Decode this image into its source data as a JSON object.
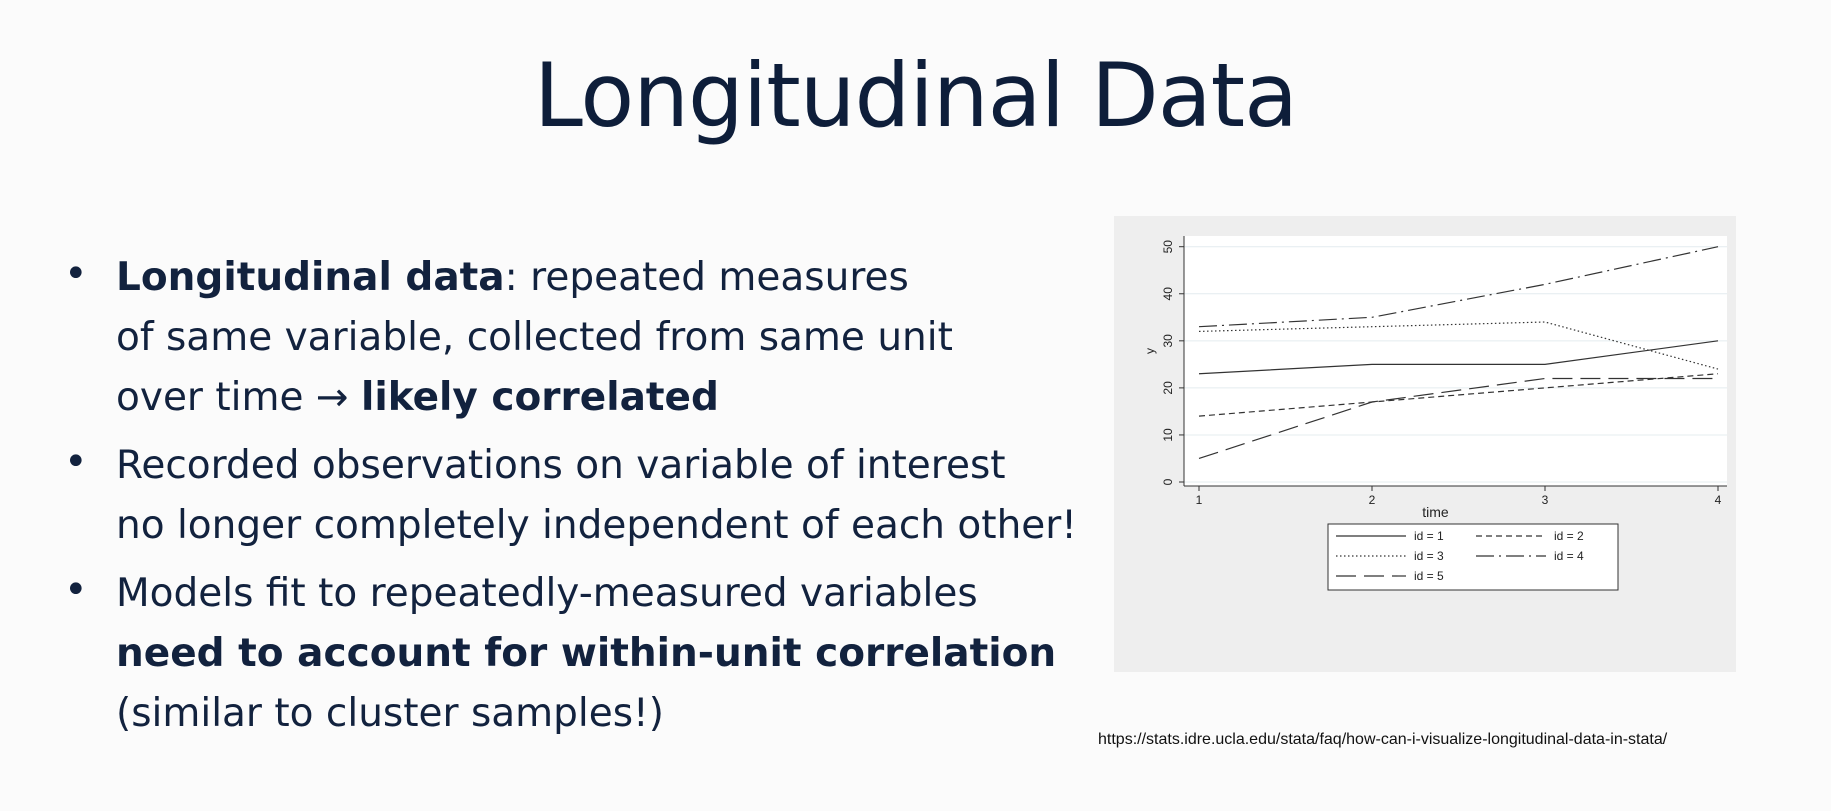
{
  "slide": {
    "title": "Longitudinal Data",
    "bullets": [
      {
        "lines": [
          [
            {
              "text": "Longitudinal data",
              "bold": true
            },
            {
              "text": ": repeated measures",
              "bold": false
            }
          ],
          [
            {
              "text": "of same variable, collected from same unit",
              "bold": false
            }
          ],
          [
            {
              "text": "over time → ",
              "bold": false
            },
            {
              "text": "likely correlated",
              "bold": true
            }
          ]
        ]
      },
      {
        "lines": [
          [
            {
              "text": "Recorded observations on variable of interest",
              "bold": false
            }
          ],
          [
            {
              "text": "no longer completely independent of each other!",
              "bold": false
            }
          ]
        ]
      },
      {
        "lines": [
          [
            {
              "text": "Models fit to repeatedly-measured variables",
              "bold": false
            }
          ],
          [
            {
              "text": "need to account for within-unit correlation",
              "bold": true
            }
          ],
          [
            {
              "text": "(similar to cluster samples!)",
              "bold": false
            }
          ]
        ]
      }
    ],
    "source_url": "https://stats.idre.ucla.edu/stata/faq/how-can-i-visualize-longitudinal-data-in-stata/"
  },
  "chart_data": {
    "type": "line",
    "title": "",
    "xlabel": "time",
    "ylabel": "y",
    "x": [
      1,
      2,
      3,
      4
    ],
    "x_ticks": [
      1,
      2,
      3,
      4
    ],
    "y_ticks": [
      0,
      10,
      20,
      30,
      40,
      50
    ],
    "xlim": [
      1,
      4
    ],
    "ylim": [
      0,
      51
    ],
    "grid": true,
    "legend_position": "bottom",
    "line_color": "#333333",
    "background_color": "#eeeeee",
    "plot_background_color": "#ffffff",
    "series": [
      {
        "name": "id = 1",
        "values": [
          23,
          25,
          25,
          30
        ],
        "dash": "solid"
      },
      {
        "name": "id = 2",
        "values": [
          14,
          17,
          20,
          23
        ],
        "dash": "dashed"
      },
      {
        "name": "id = 3",
        "values": [
          32,
          33,
          34,
          24
        ],
        "dash": "dotted"
      },
      {
        "name": "id = 4",
        "values": [
          33,
          35,
          42,
          50
        ],
        "dash": "longdash-dot"
      },
      {
        "name": "id = 5",
        "values": [
          5,
          17,
          22,
          22
        ],
        "dash": "longdash"
      }
    ]
  }
}
